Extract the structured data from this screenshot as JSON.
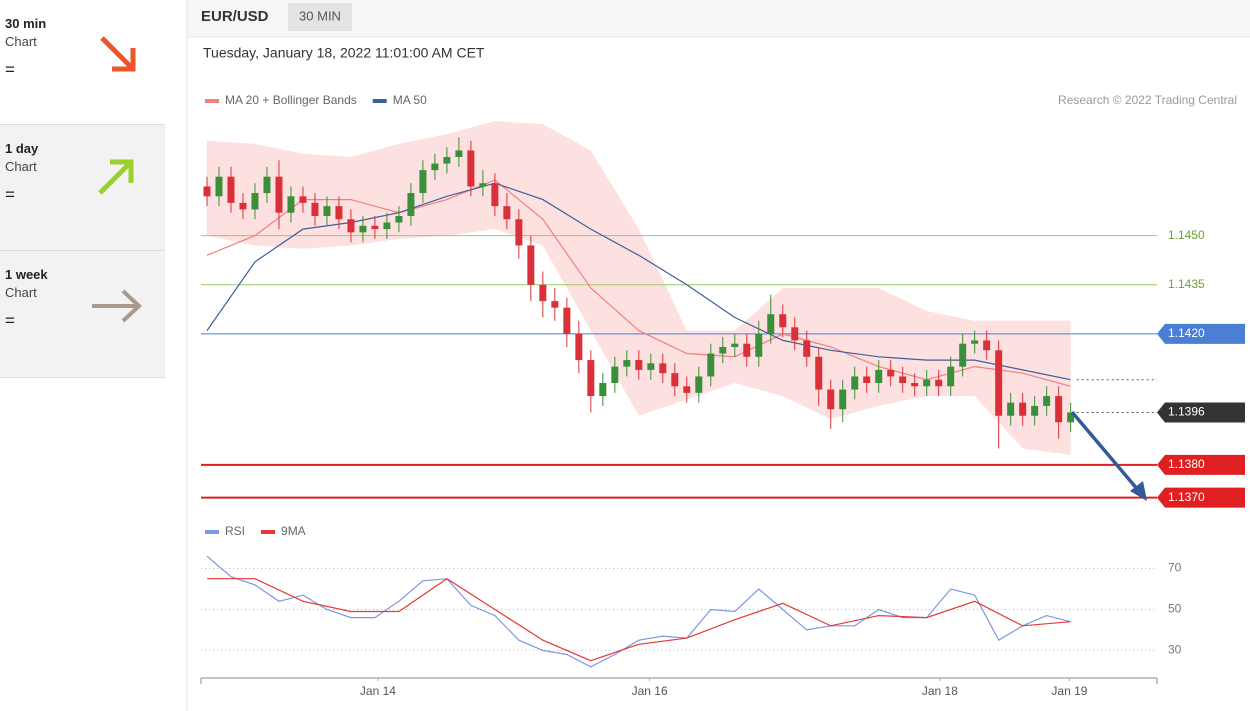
{
  "sidebar": [
    {
      "period": "30 min",
      "label": "Chart",
      "symbol": "="
    },
    {
      "period": "1 day",
      "label": "Chart",
      "symbol": "="
    },
    {
      "period": "1 week",
      "label": "Chart",
      "symbol": "="
    }
  ],
  "header": {
    "symbol": "EUR/USD",
    "interval": "30 MIN",
    "timestamp": "Tuesday, January 18, 2022 11:01:00 AM CET"
  },
  "chart_data": [
    {
      "type": "candlestick",
      "credit": "Research © 2022 Trading Central",
      "ylim": [
        1.1365,
        1.1485
      ],
      "xlim": [
        -0.5,
        79.2
      ],
      "candles": {
        "up_color": "#3a8f3a",
        "down_color": "#d9303a",
        "open": [
          1.1465,
          1.1462,
          1.1468,
          1.146,
          1.1458,
          1.1463,
          1.1468,
          1.1457,
          1.1462,
          1.146,
          1.1456,
          1.1459,
          1.1455,
          1.1451,
          1.1453,
          1.1452,
          1.1454,
          1.1456,
          1.1463,
          1.147,
          1.1472,
          1.1474,
          1.1476,
          1.1465,
          1.1466,
          1.1459,
          1.1455,
          1.1447,
          1.1435,
          1.143,
          1.1428,
          1.142,
          1.1412,
          1.1401,
          1.1405,
          1.141,
          1.1412,
          1.1409,
          1.1411,
          1.1408,
          1.1404,
          1.1402,
          1.1407,
          1.1414,
          1.1416,
          1.1417,
          1.1413,
          1.142,
          1.1426,
          1.1422,
          1.1418,
          1.1413,
          1.1403,
          1.1397,
          1.1403,
          1.1407,
          1.1405,
          1.1409,
          1.1407,
          1.1405,
          1.1404,
          1.1406,
          1.1404,
          1.141,
          1.1417,
          1.1418,
          1.1415,
          1.1395,
          1.1399,
          1.1395,
          1.1398,
          1.1401,
          1.1393
        ],
        "high": [
          1.1468,
          1.1471,
          1.1471,
          1.1463,
          1.1466,
          1.1471,
          1.1473,
          1.1465,
          1.1465,
          1.1463,
          1.1462,
          1.1462,
          1.1458,
          1.1456,
          1.1456,
          1.1457,
          1.1459,
          1.1466,
          1.1473,
          1.1475,
          1.1477,
          1.148,
          1.1479,
          1.147,
          1.1469,
          1.1463,
          1.1458,
          1.145,
          1.1439,
          1.1434,
          1.1431,
          1.1424,
          1.1415,
          1.1408,
          1.1413,
          1.1415,
          1.1415,
          1.1414,
          1.1414,
          1.1411,
          1.1407,
          1.141,
          1.1417,
          1.1419,
          1.142,
          1.142,
          1.1424,
          1.1432,
          1.1429,
          1.1425,
          1.1421,
          1.1416,
          1.1406,
          1.1406,
          1.141,
          1.141,
          1.1412,
          1.1412,
          1.141,
          1.1408,
          1.1409,
          1.1409,
          1.1413,
          1.142,
          1.1421,
          1.1421,
          1.1418,
          1.1402,
          1.1402,
          1.1401,
          1.1404,
          1.1404,
          1.1399
        ],
        "low": [
          1.1459,
          1.1459,
          1.1457,
          1.1455,
          1.1455,
          1.146,
          1.1452,
          1.1454,
          1.1457,
          1.1453,
          1.1453,
          1.1452,
          1.1448,
          1.1448,
          1.1449,
          1.1449,
          1.1451,
          1.1453,
          1.146,
          1.1467,
          1.1469,
          1.1471,
          1.1462,
          1.1462,
          1.1456,
          1.1452,
          1.1443,
          1.143,
          1.1425,
          1.1424,
          1.1416,
          1.1408,
          1.1396,
          1.1398,
          1.1402,
          1.1407,
          1.1406,
          1.1406,
          1.1405,
          1.1401,
          1.1399,
          1.1399,
          1.1404,
          1.1411,
          1.1413,
          1.141,
          1.141,
          1.1417,
          1.1419,
          1.1415,
          1.141,
          1.1398,
          1.1391,
          1.1393,
          1.14,
          1.1402,
          1.1402,
          1.1404,
          1.1402,
          1.1401,
          1.1401,
          1.1401,
          1.1401,
          1.1407,
          1.1414,
          1.1412,
          1.1385,
          1.1392,
          1.1392,
          1.1392,
          1.1395,
          1.1388,
          1.139
        ],
        "close": [
          1.1462,
          1.1468,
          1.146,
          1.1458,
          1.1463,
          1.1468,
          1.1457,
          1.1462,
          1.146,
          1.1456,
          1.1459,
          1.1455,
          1.1451,
          1.1453,
          1.1452,
          1.1454,
          1.1456,
          1.1463,
          1.147,
          1.1472,
          1.1474,
          1.1476,
          1.1465,
          1.1466,
          1.1459,
          1.1455,
          1.1447,
          1.1435,
          1.143,
          1.1428,
          1.142,
          1.1412,
          1.1401,
          1.1405,
          1.141,
          1.1412,
          1.1409,
          1.1411,
          1.1408,
          1.1404,
          1.1402,
          1.1407,
          1.1414,
          1.1416,
          1.1417,
          1.1413,
          1.142,
          1.1426,
          1.1422,
          1.1418,
          1.1413,
          1.1403,
          1.1397,
          1.1403,
          1.1407,
          1.1405,
          1.1409,
          1.1407,
          1.1405,
          1.1404,
          1.1406,
          1.1404,
          1.141,
          1.1417,
          1.1418,
          1.1415,
          1.1395,
          1.1399,
          1.1395,
          1.1398,
          1.1401,
          1.1393,
          1.1396
        ]
      },
      "series": [
        {
          "name": "MA 20 + Bollinger Bands",
          "color": "#f08080",
          "band_color": "#fde0e0",
          "x": [
            0,
            4,
            8,
            12,
            16,
            20,
            24,
            28,
            32,
            36,
            40,
            44,
            48,
            52,
            56,
            60,
            64,
            68,
            72
          ],
          "values": [
            1.1444,
            1.145,
            1.1461,
            1.1461,
            1.1457,
            1.1461,
            1.1467,
            1.1455,
            1.1434,
            1.1421,
            1.1414,
            1.1413,
            1.142,
            1.1416,
            1.141,
            1.1406,
            1.141,
            1.1408,
            1.1404
          ],
          "band_upper": [
            1.1479,
            1.1478,
            1.1475,
            1.1474,
            1.1478,
            1.1481,
            1.1485,
            1.1484,
            1.1476,
            1.1452,
            1.1421,
            1.1421,
            1.1434,
            1.1434,
            1.1434,
            1.1427,
            1.1424,
            1.1424,
            1.1424
          ],
          "band_lower": [
            1.145,
            1.1447,
            1.1446,
            1.1447,
            1.1449,
            1.145,
            1.1452,
            1.1447,
            1.1421,
            1.1395,
            1.14,
            1.1405,
            1.1401,
            1.1394,
            1.1398,
            1.1401,
            1.1401,
            1.1385,
            1.1383
          ]
        },
        {
          "name": "MA 50",
          "color": "#3d5f9a",
          "x": [
            0,
            4,
            8,
            12,
            16,
            20,
            24,
            28,
            32,
            36,
            40,
            44,
            48,
            52,
            56,
            60,
            64,
            68,
            72
          ],
          "values": [
            1.1421,
            1.1442,
            1.1452,
            1.1454,
            1.1457,
            1.1462,
            1.1466,
            1.1461,
            1.1452,
            1.1444,
            1.1435,
            1.1425,
            1.1418,
            1.1415,
            1.1413,
            1.1412,
            1.1412,
            1.1409,
            1.1406
          ]
        }
      ],
      "levels": [
        {
          "value": 1.145,
          "label": "1.1450",
          "color": "#9ccc65",
          "text_color": "#6aa32a",
          "width": 1,
          "boxed": false
        },
        {
          "value": 1.1435,
          "label": "1.1435",
          "color": "#9ccc65",
          "text_color": "#6aa32a",
          "width": 1,
          "boxed": false
        },
        {
          "value": 1.142,
          "label": "1.1420",
          "color": "#4a7fd4",
          "text_color": "#ffffff",
          "width": 1,
          "boxed": true
        },
        {
          "value": 1.138,
          "label": "1.1380",
          "color": "#e02020",
          "text_color": "#ffffff",
          "width": 2,
          "boxed": true
        },
        {
          "value": 1.137,
          "label": "1.1370",
          "color": "#e02020",
          "text_color": "#ffffff",
          "width": 2,
          "boxed": true
        }
      ],
      "last_price": {
        "value": 1.1396,
        "label": "1.1396",
        "color": "#333333"
      }
    },
    {
      "type": "line",
      "ylim": [
        18,
        80
      ],
      "yticks": [
        30,
        50,
        70
      ],
      "xlim": [
        -0.5,
        79.2
      ],
      "xticks": [
        {
          "value": 14.25,
          "label": "Jan 14"
        },
        {
          "value": 36.9,
          "label": "Jan 16"
        },
        {
          "value": 61.1,
          "label": "Jan 18"
        },
        {
          "value": 71.9,
          "label": "Jan 19"
        }
      ],
      "series": [
        {
          "name": "RSI",
          "color": "#7b98e0",
          "x": [
            0,
            2,
            4,
            6,
            8,
            10,
            12,
            14,
            16,
            18,
            20,
            22,
            24,
            26,
            28,
            30,
            32,
            34,
            36,
            38,
            40,
            42,
            44,
            46,
            48,
            50,
            52,
            54,
            56,
            58,
            60,
            62,
            64,
            66,
            68,
            70,
            72
          ],
          "values": [
            76,
            66,
            62,
            54,
            57,
            50,
            46,
            46,
            54,
            64,
            65,
            52,
            47,
            35,
            30,
            28,
            22,
            28,
            35,
            37,
            36,
            50,
            49,
            60,
            50,
            40,
            42,
            42,
            50,
            46,
            46,
            60,
            57,
            35,
            42,
            47,
            44
          ]
        },
        {
          "name": "9MA",
          "color": "#e53935",
          "x": [
            0,
            4,
            8,
            12,
            16,
            20,
            24,
            28,
            32,
            36,
            40,
            44,
            48,
            52,
            56,
            60,
            64,
            68,
            72
          ],
          "values": [
            65,
            65,
            54,
            49,
            49,
            65,
            50,
            35,
            25,
            33,
            36,
            45,
            53,
            42,
            47,
            46,
            54,
            42,
            44
          ]
        }
      ]
    }
  ]
}
